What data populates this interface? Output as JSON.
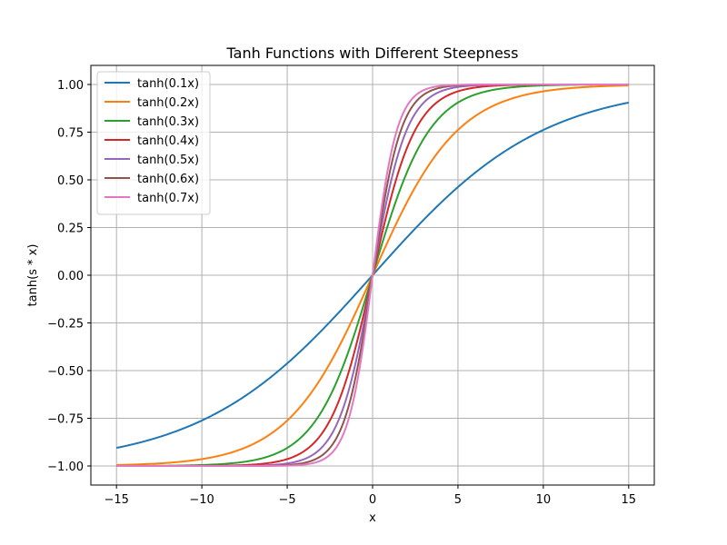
{
  "chart_data": {
    "type": "line",
    "title": "Tanh Functions with Different Steepness",
    "xlabel": "x",
    "ylabel": "tanh(s * x)",
    "xlim": [
      -16.5,
      16.5
    ],
    "ylim": [
      -1.1,
      1.1
    ],
    "x_range": [
      -15,
      15
    ],
    "x_ticks": [
      -15,
      -10,
      -5,
      0,
      5,
      10,
      15
    ],
    "x_tick_labels": [
      "−15",
      "−10",
      "−5",
      "0",
      "5",
      "10",
      "15"
    ],
    "y_ticks": [
      -1.0,
      -0.75,
      -0.5,
      -0.25,
      0.0,
      0.25,
      0.5,
      0.75,
      1.0
    ],
    "y_tick_labels": [
      "−1.00",
      "−0.75",
      "−0.50",
      "−0.25",
      "0.00",
      "0.25",
      "0.50",
      "0.75",
      "1.00"
    ],
    "grid": true,
    "legend_position": "top-left",
    "series": [
      {
        "name": "tanh(0.1x)",
        "steepness": 0.1,
        "color": "#1f77b4"
      },
      {
        "name": "tanh(0.2x)",
        "steepness": 0.2,
        "color": "#ff7f0e"
      },
      {
        "name": "tanh(0.3x)",
        "steepness": 0.3,
        "color": "#2ca02c"
      },
      {
        "name": "tanh(0.4x)",
        "steepness": 0.4,
        "color": "#d62728"
      },
      {
        "name": "tanh(0.5x)",
        "steepness": 0.5,
        "color": "#9467bd"
      },
      {
        "name": "tanh(0.6x)",
        "steepness": 0.6,
        "color": "#8c564b"
      },
      {
        "name": "tanh(0.7x)",
        "steepness": 0.7,
        "color": "#e377c2"
      }
    ]
  }
}
